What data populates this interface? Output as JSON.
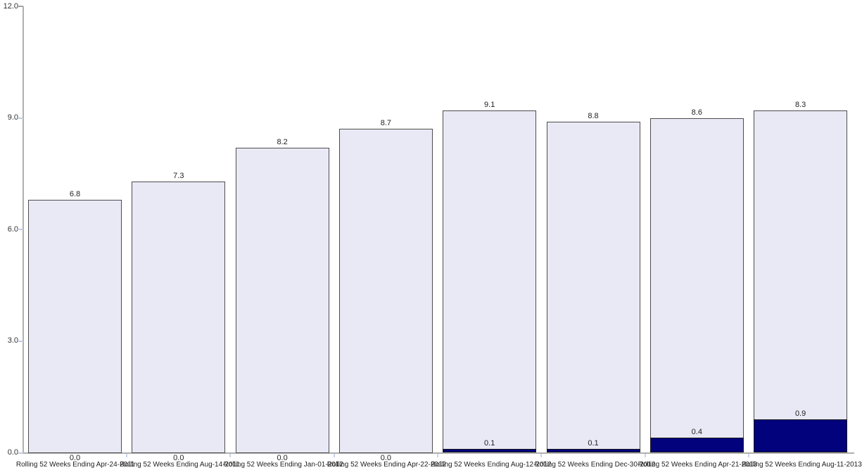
{
  "chart_data": {
    "type": "bar",
    "stacked": true,
    "title": "",
    "xlabel": "",
    "ylabel": "",
    "ylim": [
      0,
      12
    ],
    "yticks": [
      "0.0",
      "3.0",
      "6.0",
      "9.0",
      "12.0"
    ],
    "grid": false,
    "legend_position": "none",
    "value_labels": true,
    "categories": [
      "Rolling 52 Weeks Ending Apr-24-2011",
      "Rolling 52 Weeks Ending Aug-14-2011",
      "Rolling 52 Weeks Ending Jan-01-2012",
      "Rolling 52 Weeks Ending Apr-22-2012",
      "Rolling 52 Weeks Ending Aug-12-2012",
      "Rolling 52 Weeks Ending Dec-30-2012",
      "Rolling 52 Weeks Ending Apr-21-2013",
      "Rolling 52 Weeks Ending Aug-11-2013"
    ],
    "series": [
      {
        "name": "navy-bottom-segment",
        "color": "#02027c",
        "values": [
          0.0,
          0.0,
          0.0,
          0.0,
          0.1,
          0.1,
          0.4,
          0.9
        ]
      },
      {
        "name": "lavender-top-segment",
        "color": "#e9e9f6",
        "values": [
          6.8,
          7.3,
          8.2,
          8.7,
          9.1,
          8.8,
          8.6,
          8.3
        ]
      }
    ]
  },
  "colors": {
    "background": "#ffffff",
    "bar_fill_light": "#e9e9f6",
    "bar_border_light": "#4d4d4d",
    "bar_fill_navy": "#02027c",
    "bar_border_navy": "#1a1a1a",
    "axis_line": "#b0b0b0",
    "ytick_major": "#a3a3a3",
    "ytick_minor": "#c2cddf",
    "xtick": "#c6d6ee",
    "text": "#222222"
  }
}
